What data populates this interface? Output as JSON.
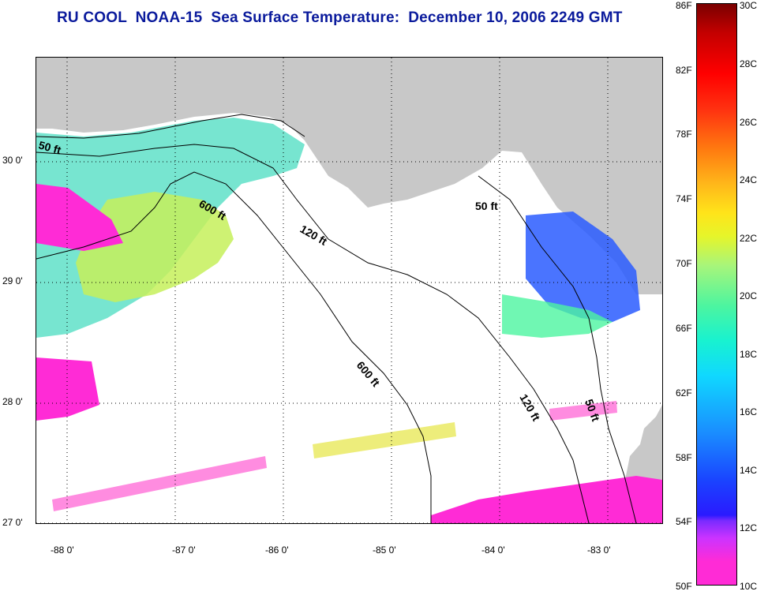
{
  "title": "RU COOL  NOAA-15  Sea Surface Temperature:  December 10, 2006 2249 GMT",
  "map": {
    "latitude_labels": [
      "30 0'",
      "29 0'",
      "28 0'",
      "27 0'"
    ],
    "longitude_labels": [
      "-88 0'",
      "-87 0'",
      "-86 0'",
      "-85 0'",
      "-84 0'",
      "-83 0'"
    ],
    "depth_contour_labels": [
      "50 ft",
      "600 ft",
      "120 ft",
      "50 ft",
      "600 ft",
      "120 ft",
      "50 ft"
    ],
    "land_color": "#c8c8c8",
    "no_data_color": "#ffffff"
  },
  "colorbar": {
    "fahrenheit": [
      "86F",
      "82F",
      "78F",
      "74F",
      "70F",
      "66F",
      "62F",
      "58F",
      "54F",
      "50F"
    ],
    "celsius": [
      "30C",
      "28C",
      "26C",
      "24C",
      "22C",
      "20C",
      "18C",
      "16C",
      "14C",
      "12C",
      "10C"
    ]
  }
}
